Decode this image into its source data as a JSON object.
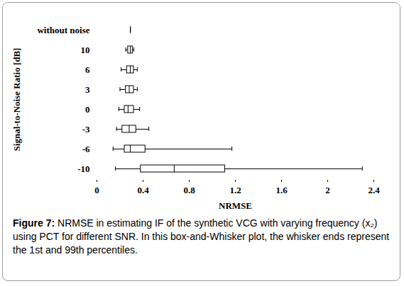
{
  "chart_data": {
    "type": "box",
    "orientation": "horizontal",
    "xlabel": "NRMSE",
    "ylabel": "Signal-to-Noise Ratio [dB]",
    "caption_label": "Figure 7:",
    "caption": "NRMSE in estimating IF of the synthetic VCG with varying frequency (x₂) using PCT for different SNR. In this box-and-Whisker plot, the whisker ends represent the 1st and 99th percentiles.",
    "categories": [
      "without noise",
      "10",
      "6",
      "3",
      "0",
      "-3",
      "-6",
      "-10"
    ],
    "min": [
      0.29,
      0.25,
      0.21,
      0.2,
      0.19,
      0.17,
      0.14,
      0.16
    ],
    "q1": [
      0.29,
      0.27,
      0.26,
      0.25,
      0.24,
      0.22,
      0.24,
      0.38
    ],
    "median": [
      0.29,
      0.29,
      0.29,
      0.28,
      0.27,
      0.28,
      0.29,
      0.67
    ],
    "q3": [
      0.29,
      0.31,
      0.32,
      0.32,
      0.32,
      0.34,
      0.42,
      1.11
    ],
    "max": [
      0.29,
      0.32,
      0.35,
      0.35,
      0.37,
      0.45,
      1.17,
      2.3
    ],
    "xlim": [
      0,
      2.4
    ],
    "xticks": [
      0,
      0.4,
      0.8,
      1.2,
      1.6,
      2,
      2.4
    ],
    "color": "#000000"
  }
}
